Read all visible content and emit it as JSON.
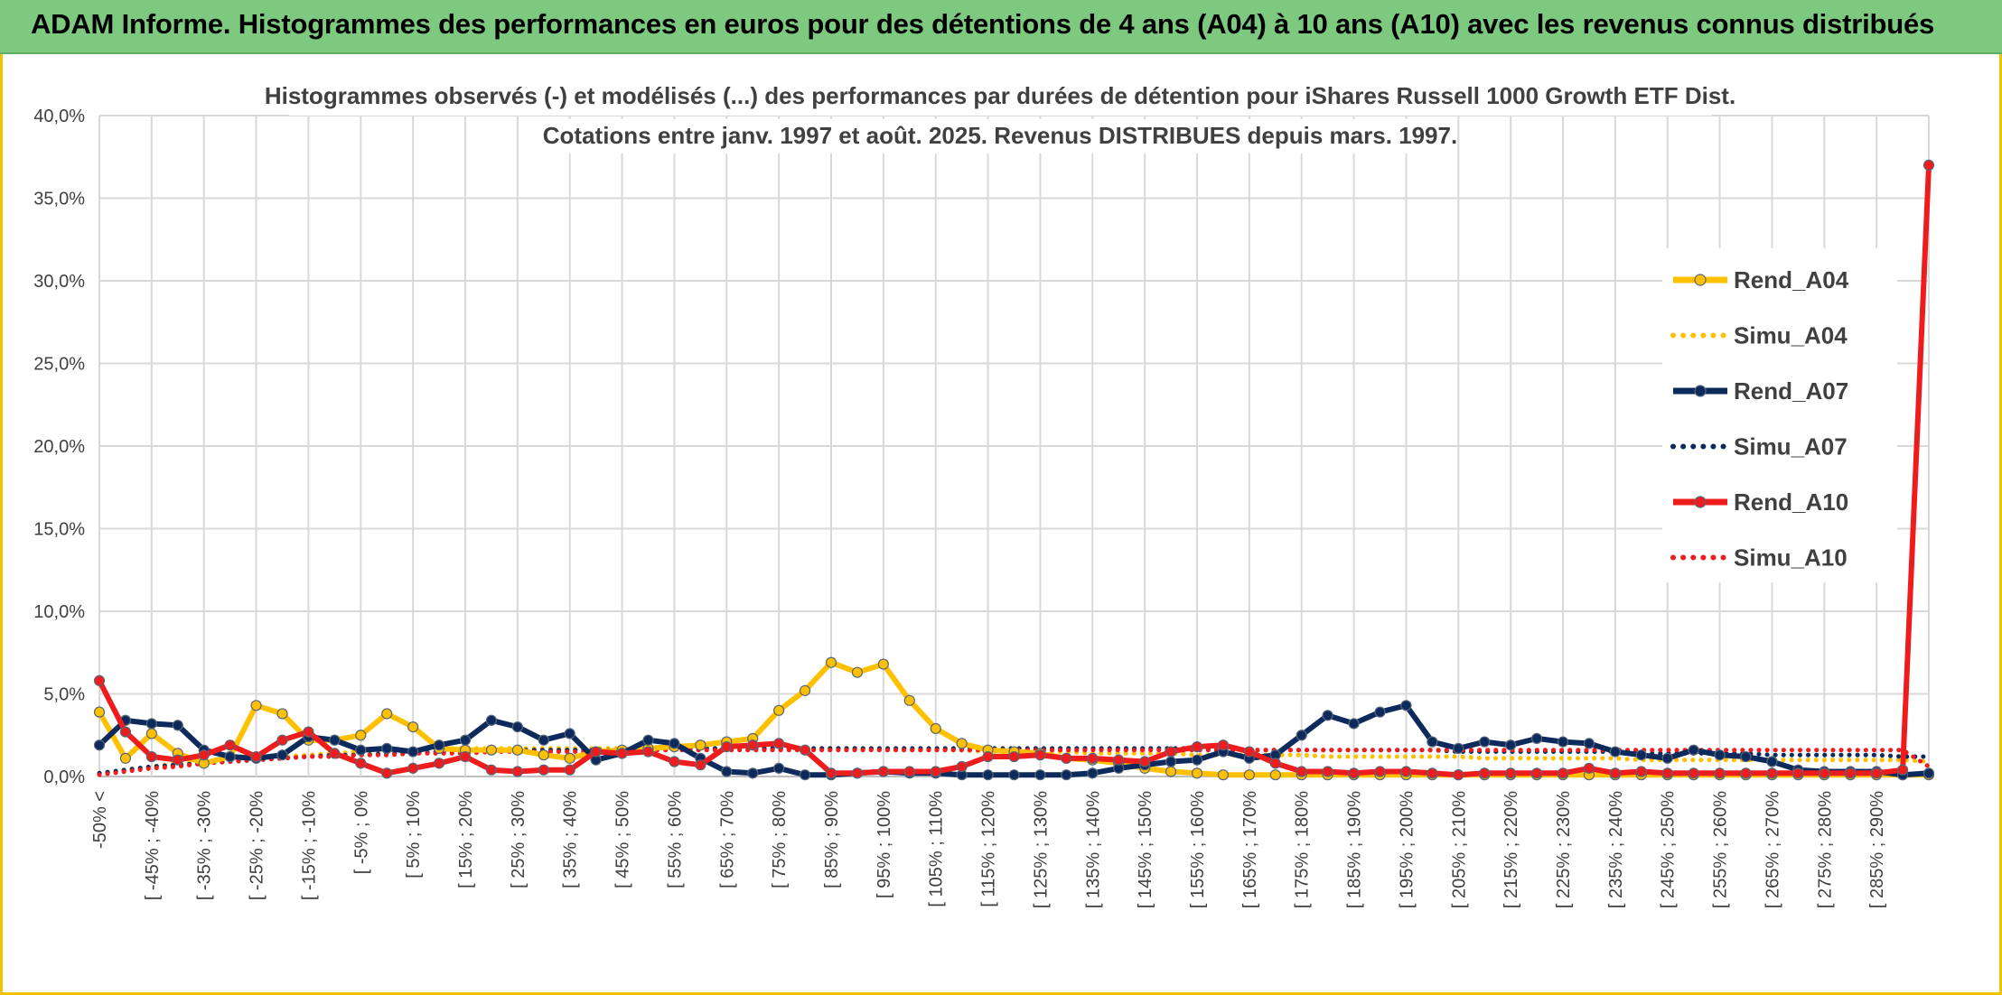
{
  "header": {
    "title": "ADAM Informe. Histogrammes des performances en euros pour des détentions de 4 ans (A04) à 10 ans (A10) avec les revenus connus distribués"
  },
  "chart_data": {
    "type": "line",
    "title": "Histogrammes observés (-) et modélisés (...) des performances par durées de détention pour iShares Russell 1000 Growth ETF Dist.",
    "subtitle": "Cotations entre janv. 1997 et août. 2025. Revenus DISTRIBUES depuis mars. 1997.",
    "xlabel": "",
    "ylabel": "",
    "ylim": [
      0,
      40
    ],
    "y_ticks": [
      "0,0%",
      "5,0%",
      "10,0%",
      "15,0%",
      "20,0%",
      "25,0%",
      "30,0%",
      "35,0%",
      "40,0%"
    ],
    "grid": true,
    "legend_position": "right",
    "categories": [
      "-50% <",
      "[ -50% ; -45%",
      "[ -45% ; -40%",
      "[ -40% ; -35%",
      "[ -35% ; -30%",
      "[ -30% ; -25%",
      "[ -25% ; -20%",
      "[ -20% ; -15%",
      "[ -15% ; -10%",
      "[ -10% ; -5%",
      "[ -5% ; 0%",
      "[ 0% ; 5%",
      "[ 5% ; 10%",
      "[ 10% ; 15%",
      "[ 15% ; 20%",
      "[ 20% ; 25%",
      "[ 25% ; 30%",
      "[ 30% ; 35%",
      "[ 35% ; 40%",
      "[ 40% ; 45%",
      "[ 45% ; 50%",
      "[ 50% ; 55%",
      "[ 55% ; 60%",
      "[ 60% ; 65%",
      "[ 65% ; 70%",
      "[ 70% ; 75%",
      "[ 75% ; 80%",
      "[ 80% ; 85%",
      "[ 85% ; 90%",
      "[ 90% ; 95%",
      "[ 95% ; 100%",
      "[ 100% ; 105%",
      "[ 105% ; 110%",
      "[ 110% ; 115%",
      "[ 115% ; 120%",
      "[ 120% ; 125%",
      "[ 125% ; 130%",
      "[ 130% ; 135%",
      "[ 135% ; 140%",
      "[ 140% ; 145%",
      "[ 145% ; 150%",
      "[ 150% ; 155%",
      "[ 155% ; 160%",
      "[ 160% ; 165%",
      "[ 165% ; 170%",
      "[ 170% ; 175%",
      "[ 175% ; 180%",
      "[ 180% ; 185%",
      "[ 185% ; 190%",
      "[ 190% ; 195%",
      "[ 195% ; 200%",
      "[ 200% ; 205%",
      "[ 205% ; 210%",
      "[ 210% ; 215%",
      "[ 215% ; 220%",
      "[ 220% ; 225%",
      "[ 225% ; 230%",
      "[ 230% ; 235%",
      "[ 235% ; 240%",
      "[ 240% ; 245%",
      "[ 245% ; 250%",
      "[ 250% ; 255%",
      "[ 255% ; 260%",
      "[ 260% ; 265%",
      "[ 265% ; 270%",
      "[ 270% ; 275%",
      "[ 275% ; 280%",
      "[ 280% ; 285%",
      "[ 285% ; 290%",
      "[ 290% ; 295%",
      "295% >"
    ],
    "visible_category_labels": [
      "-50% <",
      "[ -45% ; -40%",
      "[ -35% ; -30%",
      "[ -25% ; -20%",
      "[ -15% ; -10%",
      "[ -5% ; 0%",
      "[ 5% ; 10%",
      "[ 15% ; 20%",
      "[ 25% ; 30%",
      "[ 35% ; 40%",
      "[ 45% ; 50%",
      "[ 55% ; 60%",
      "[ 65% ; 70%",
      "[ 75% ; 80%",
      "[ 85% ; 90%",
      "[ 95% ; 100%",
      "[ 105% ; 110%",
      "[ 115% ; 120%",
      "[ 125% ; 130%",
      "[ 135% ; 140%",
      "[ 145% ; 150%",
      "[ 155% ; 160%",
      "[ 165% ; 170%",
      "[ 175% ; 180%",
      "[ 185% ; 190%",
      "[ 195% ; 200%",
      "[ 205% ; 210%",
      "[ 215% ; 220%",
      "[ 225% ; 230%",
      "[ 235% ; 240%",
      "[ 245% ; 250%",
      "[ 255% ; 260%",
      "[ 265% ; 270%",
      "[ 275% ; 280%",
      "[ 285% ; 290%"
    ],
    "series": [
      {
        "name": "Rend_A04",
        "color": "#ffc000",
        "style": "solid",
        "markers": true,
        "values": [
          3.9,
          1.1,
          2.6,
          1.4,
          0.8,
          1.2,
          4.3,
          3.8,
          2.2,
          2.2,
          2.5,
          3.8,
          3.0,
          1.7,
          1.6,
          1.6,
          1.6,
          1.3,
          1.1,
          1.5,
          1.6,
          1.7,
          1.8,
          1.9,
          2.1,
          2.3,
          4.0,
          5.2,
          6.9,
          6.3,
          6.8,
          4.6,
          2.9,
          2.0,
          1.6,
          1.5,
          1.4,
          1.1,
          1.0,
          0.8,
          0.5,
          0.3,
          0.2,
          0.1,
          0.1,
          0.1,
          0.1,
          0.1,
          0.1,
          0.1,
          0.1,
          0.1,
          0.1,
          0.1,
          0.1,
          0.1,
          0.1,
          0.1,
          0.1,
          0.1,
          0.1,
          0.1,
          0.1,
          0.1,
          0.1,
          0.1,
          0.1,
          0.1,
          0.1,
          0.1,
          0.1
        ]
      },
      {
        "name": "Simu_A04",
        "color": "#ffc000",
        "style": "dotted",
        "markers": false,
        "values": [
          0.2,
          0.4,
          0.6,
          0.8,
          0.9,
          1.0,
          1.1,
          1.2,
          1.3,
          1.4,
          1.5,
          1.6,
          1.6,
          1.7,
          1.7,
          1.7,
          1.7,
          1.7,
          1.7,
          1.7,
          1.7,
          1.7,
          1.7,
          1.7,
          1.7,
          1.7,
          1.7,
          1.7,
          1.7,
          1.7,
          1.6,
          1.6,
          1.6,
          1.6,
          1.5,
          1.5,
          1.5,
          1.5,
          1.4,
          1.4,
          1.4,
          1.4,
          1.3,
          1.3,
          1.3,
          1.3,
          1.3,
          1.2,
          1.2,
          1.2,
          1.2,
          1.2,
          1.2,
          1.1,
          1.1,
          1.1,
          1.1,
          1.1,
          1.1,
          1.0,
          1.0,
          1.0,
          1.0,
          1.0,
          1.0,
          1.0,
          1.0,
          1.0,
          1.0,
          1.0,
          0.9
        ]
      },
      {
        "name": "Rend_A07",
        "color": "#0d2a5c",
        "style": "solid",
        "markers": true,
        "values": [
          1.9,
          3.4,
          3.2,
          3.1,
          1.6,
          1.2,
          1.1,
          1.3,
          2.4,
          2.2,
          1.6,
          1.7,
          1.5,
          1.9,
          2.2,
          3.4,
          3.0,
          2.2,
          2.6,
          1.0,
          1.4,
          2.2,
          2.0,
          1.1,
          0.3,
          0.2,
          0.5,
          0.1,
          0.1,
          0.2,
          0.3,
          0.2,
          0.2,
          0.1,
          0.1,
          0.1,
          0.1,
          0.1,
          0.2,
          0.5,
          0.7,
          0.9,
          1.0,
          1.5,
          1.1,
          1.3,
          2.5,
          3.7,
          3.2,
          3.9,
          4.3,
          2.1,
          1.7,
          2.1,
          1.9,
          2.3,
          2.1,
          2.0,
          1.5,
          1.3,
          1.1,
          1.6,
          1.3,
          1.2,
          0.9,
          0.4,
          0.3,
          0.3,
          0.3,
          0.1,
          0.2
        ]
      },
      {
        "name": "Simu_A07",
        "color": "#0d2a5c",
        "style": "dotted",
        "markers": false,
        "values": [
          0.2,
          0.4,
          0.6,
          0.7,
          0.8,
          0.9,
          1.0,
          1.1,
          1.2,
          1.3,
          1.3,
          1.4,
          1.4,
          1.5,
          1.5,
          1.5,
          1.6,
          1.6,
          1.6,
          1.6,
          1.6,
          1.6,
          1.7,
          1.7,
          1.7,
          1.7,
          1.7,
          1.7,
          1.7,
          1.7,
          1.7,
          1.7,
          1.7,
          1.7,
          1.7,
          1.7,
          1.7,
          1.7,
          1.7,
          1.7,
          1.7,
          1.7,
          1.7,
          1.6,
          1.6,
          1.6,
          1.6,
          1.6,
          1.6,
          1.6,
          1.6,
          1.6,
          1.5,
          1.5,
          1.5,
          1.5,
          1.5,
          1.5,
          1.5,
          1.4,
          1.4,
          1.4,
          1.4,
          1.4,
          1.3,
          1.3,
          1.3,
          1.3,
          1.3,
          1.2,
          1.2
        ]
      },
      {
        "name": "Rend_A10",
        "color": "#ee1c1c",
        "style": "solid",
        "markers": true,
        "values": [
          5.8,
          2.7,
          1.2,
          1.0,
          1.3,
          1.9,
          1.2,
          2.2,
          2.7,
          1.4,
          0.8,
          0.2,
          0.5,
          0.8,
          1.2,
          0.4,
          0.3,
          0.4,
          0.4,
          1.5,
          1.4,
          1.5,
          0.9,
          0.7,
          1.8,
          1.9,
          2.0,
          1.6,
          0.2,
          0.2,
          0.3,
          0.3,
          0.3,
          0.6,
          1.2,
          1.2,
          1.3,
          1.1,
          1.1,
          1.0,
          0.9,
          1.5,
          1.8,
          1.9,
          1.5,
          0.8,
          0.3,
          0.3,
          0.2,
          0.3,
          0.3,
          0.2,
          0.1,
          0.2,
          0.2,
          0.2,
          0.2,
          0.5,
          0.2,
          0.3,
          0.2,
          0.2,
          0.2,
          0.2,
          0.2,
          0.2,
          0.2,
          0.2,
          0.2,
          0.4,
          37.0
        ]
      },
      {
        "name": "Simu_A10",
        "color": "#ee1c1c",
        "style": "dotted",
        "markers": false,
        "values": [
          0.1,
          0.3,
          0.5,
          0.6,
          0.8,
          0.9,
          1.0,
          1.1,
          1.2,
          1.2,
          1.3,
          1.3,
          1.4,
          1.4,
          1.4,
          1.5,
          1.5,
          1.5,
          1.5,
          1.5,
          1.5,
          1.6,
          1.6,
          1.6,
          1.6,
          1.6,
          1.6,
          1.6,
          1.6,
          1.6,
          1.6,
          1.6,
          1.6,
          1.6,
          1.6,
          1.6,
          1.6,
          1.6,
          1.6,
          1.6,
          1.6,
          1.6,
          1.6,
          1.6,
          1.6,
          1.6,
          1.6,
          1.6,
          1.6,
          1.6,
          1.6,
          1.6,
          1.6,
          1.6,
          1.6,
          1.6,
          1.6,
          1.6,
          1.6,
          1.6,
          1.6,
          1.6,
          1.6,
          1.6,
          1.6,
          1.6,
          1.6,
          1.6,
          1.6,
          1.6,
          0.6
        ]
      }
    ]
  }
}
